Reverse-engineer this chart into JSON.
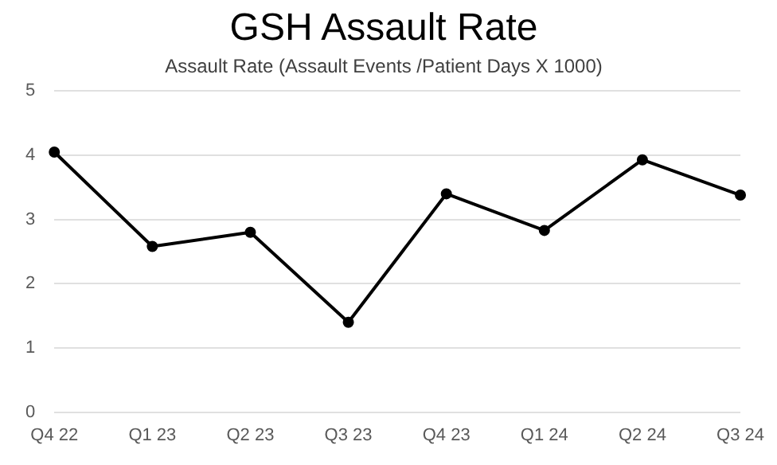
{
  "chart_data": {
    "type": "line",
    "title": "GSH Assault Rate",
    "subtitle": "Assault Rate (Assault Events /Patient Days X 1000)",
    "categories": [
      "Q4 22",
      "Q1 23",
      "Q2 23",
      "Q3 23",
      "Q4 23",
      "Q1 24",
      "Q2 24",
      "Q3 24"
    ],
    "series": [
      {
        "color": "#000000",
        "values": [
          4.05,
          2.58,
          2.8,
          1.4,
          3.4,
          2.83,
          3.93,
          3.38
        ]
      }
    ],
    "ylim": [
      0,
      5
    ],
    "yticks": [
      0,
      1,
      2,
      3,
      4,
      5
    ],
    "grid": "y",
    "legend": false,
    "marker": "circle",
    "line_style": "solid"
  }
}
